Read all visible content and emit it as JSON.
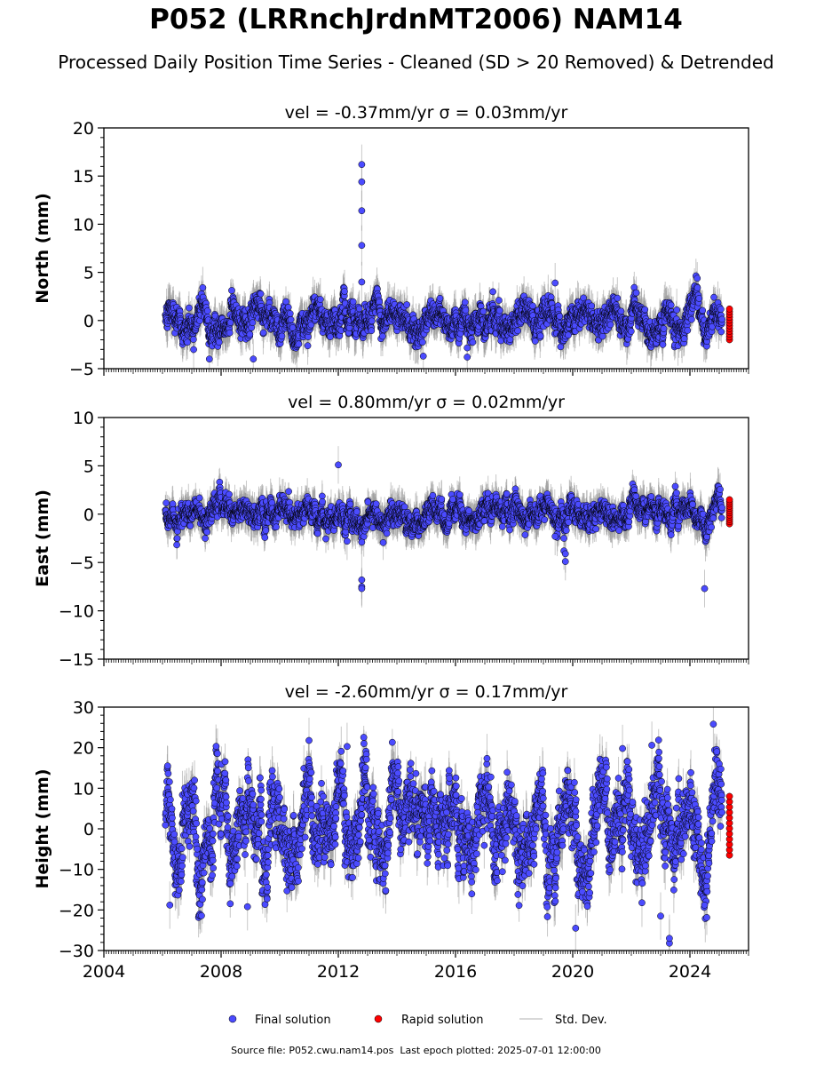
{
  "title": "P052 (LRRnchJrdnMT2006) NAM14",
  "subtitle": "Processed Daily Position Time Series - Cleaned (SD > 20 Removed) & Detrended",
  "footer": {
    "source_label": "Source file:",
    "source_file": "P052.cwu.nam14.pos",
    "last_epoch_label": "Last epoch plotted:",
    "last_epoch": "2025-07-01 12:00:00"
  },
  "legend": [
    {
      "label": "Final solution",
      "color": "#4b4bff",
      "marker": "circle"
    },
    {
      "label": "Rapid solution",
      "color": "#ff0000",
      "marker": "circle"
    },
    {
      "label": "Std. Dev.",
      "color": "#cccccc",
      "marker": "line"
    }
  ],
  "colors": {
    "final": "#4b4bff",
    "rapid": "#ff0000",
    "errorbar": "#9a9a9a",
    "marker_edge": "#000000"
  },
  "chart_data": [
    {
      "type": "scatter",
      "component": "north",
      "title": "vel = -0.37mm/yr   σ = 0.03mm/yr",
      "ylabel": "North (mm)",
      "xlim": [
        2004,
        2026
      ],
      "ylim": [
        -5,
        20
      ],
      "yticks": [
        -5,
        0,
        5,
        10,
        15,
        20
      ],
      "xticks": [
        2004,
        2008,
        2012,
        2016,
        2020,
        2024
      ],
      "show_xticklabels": false,
      "grid": false,
      "data_span": [
        2006.1,
        2025.1
      ],
      "rapid_x": 2025.35,
      "rapid_range": [
        -2,
        1.2
      ],
      "noise": {
        "amp": 0.95,
        "seasonal": 0.7,
        "err": 1.6
      },
      "outliers": [
        {
          "x": 2012.8,
          "y": 16.2
        },
        {
          "x": 2012.8,
          "y": 14.4
        },
        {
          "x": 2012.8,
          "y": 11.4
        },
        {
          "x": 2012.8,
          "y": 7.8
        },
        {
          "x": 2012.8,
          "y": 4.0
        },
        {
          "x": 2019.4,
          "y": 3.9
        },
        {
          "x": 2007.6,
          "y": -4.0
        },
        {
          "x": 2009.1,
          "y": -4.0
        },
        {
          "x": 2014.9,
          "y": -3.7
        },
        {
          "x": 2016.4,
          "y": -3.8
        }
      ]
    },
    {
      "type": "scatter",
      "component": "east",
      "title": "vel = 0.80mm/yr   σ = 0.02mm/yr",
      "ylabel": "East (mm)",
      "xlim": [
        2004,
        2026
      ],
      "ylim": [
        -15,
        10
      ],
      "yticks": [
        -15,
        -10,
        -5,
        0,
        5,
        10
      ],
      "xticks": [
        2004,
        2008,
        2012,
        2016,
        2020,
        2024
      ],
      "show_xticklabels": false,
      "grid": false,
      "data_span": [
        2006.1,
        2025.1
      ],
      "rapid_x": 2025.35,
      "rapid_range": [
        -1,
        1.5
      ],
      "noise": {
        "amp": 0.8,
        "seasonal": 0.5,
        "err": 1.5
      },
      "outliers": [
        {
          "x": 2012.0,
          "y": 5.1
        },
        {
          "x": 2012.3,
          "y": -2.8
        },
        {
          "x": 2012.8,
          "y": -2.9
        },
        {
          "x": 2012.8,
          "y": -6.8
        },
        {
          "x": 2012.8,
          "y": -7.5
        },
        {
          "x": 2012.8,
          "y": -7.7
        },
        {
          "x": 2019.4,
          "y": -2.3
        },
        {
          "x": 2019.7,
          "y": -3.8
        },
        {
          "x": 2019.75,
          "y": -4.1
        },
        {
          "x": 2019.75,
          "y": -4.9
        },
        {
          "x": 2019.7,
          "y": -2.5
        },
        {
          "x": 2024.5,
          "y": -7.7
        }
      ]
    },
    {
      "type": "scatter",
      "component": "height",
      "title": "vel = -2.60mm/yr   σ = 0.17mm/yr",
      "ylabel": "Height (mm)",
      "xlim": [
        2004,
        2026
      ],
      "ylim": [
        -30,
        30
      ],
      "yticks": [
        -30,
        -20,
        -10,
        0,
        10,
        20,
        30
      ],
      "xticks": [
        2004,
        2008,
        2012,
        2016,
        2020,
        2024
      ],
      "show_xticklabels": true,
      "grid": false,
      "data_span": [
        2006.1,
        2025.1
      ],
      "rapid_x": 2025.35,
      "rapid_range": [
        -6.5,
        8
      ],
      "noise": {
        "amp": 5.5,
        "seasonal": 6,
        "err": 4.5
      },
      "outliers": [
        {
          "x": 2023.3,
          "y": -28.2
        },
        {
          "x": 2023.3,
          "y": -27.0
        },
        {
          "x": 2023.0,
          "y": -21.5
        },
        {
          "x": 2020.1,
          "y": -24.5
        },
        {
          "x": 2024.8,
          "y": 25.8
        },
        {
          "x": 2024.5,
          "y": -18.8
        },
        {
          "x": 2006.25,
          "y": -18.8
        },
        {
          "x": 2008.9,
          "y": -19.2
        },
        {
          "x": 2012.3,
          "y": 20.3
        },
        {
          "x": 2022.7,
          "y": 20.6
        },
        {
          "x": 2021.7,
          "y": 19.8
        }
      ]
    }
  ]
}
